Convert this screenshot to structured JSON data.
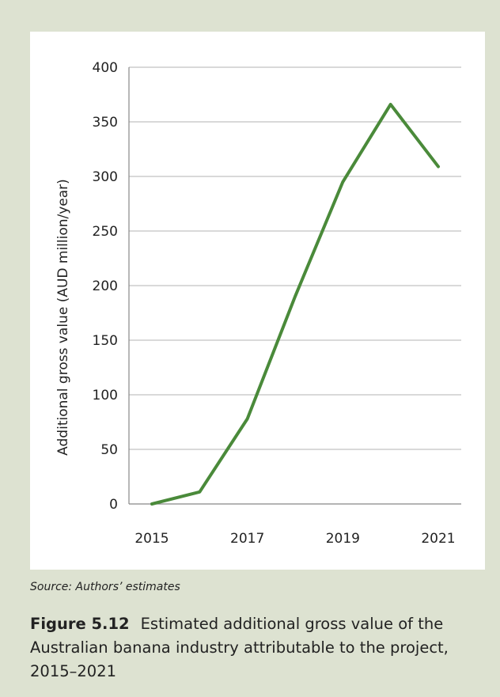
{
  "chart_data": {
    "type": "line",
    "title": "",
    "xlabel": "",
    "ylabel": "Additional gross value  (AUD million/year)",
    "x": [
      2015,
      2016,
      2017,
      2018,
      2019,
      2020,
      2021
    ],
    "x_tick_labels": [
      "2015",
      "2017",
      "2019",
      "2021"
    ],
    "y_tick_labels": [
      "0",
      "50",
      "100",
      "150",
      "200",
      "250",
      "300",
      "350",
      "400"
    ],
    "ylim": [
      0,
      400
    ],
    "grid": true,
    "legend": "none",
    "series": [
      {
        "values": [
          0,
          11,
          78,
          190,
          295,
          366,
          309
        ],
        "color": "#4a8a3a"
      }
    ]
  },
  "source_note": "Source: Authors’ estimates",
  "caption": {
    "label": "Figure 5.12",
    "text": "Estimated additional gross value of the Australian banana industry attributable to the project, 2015–2021"
  }
}
